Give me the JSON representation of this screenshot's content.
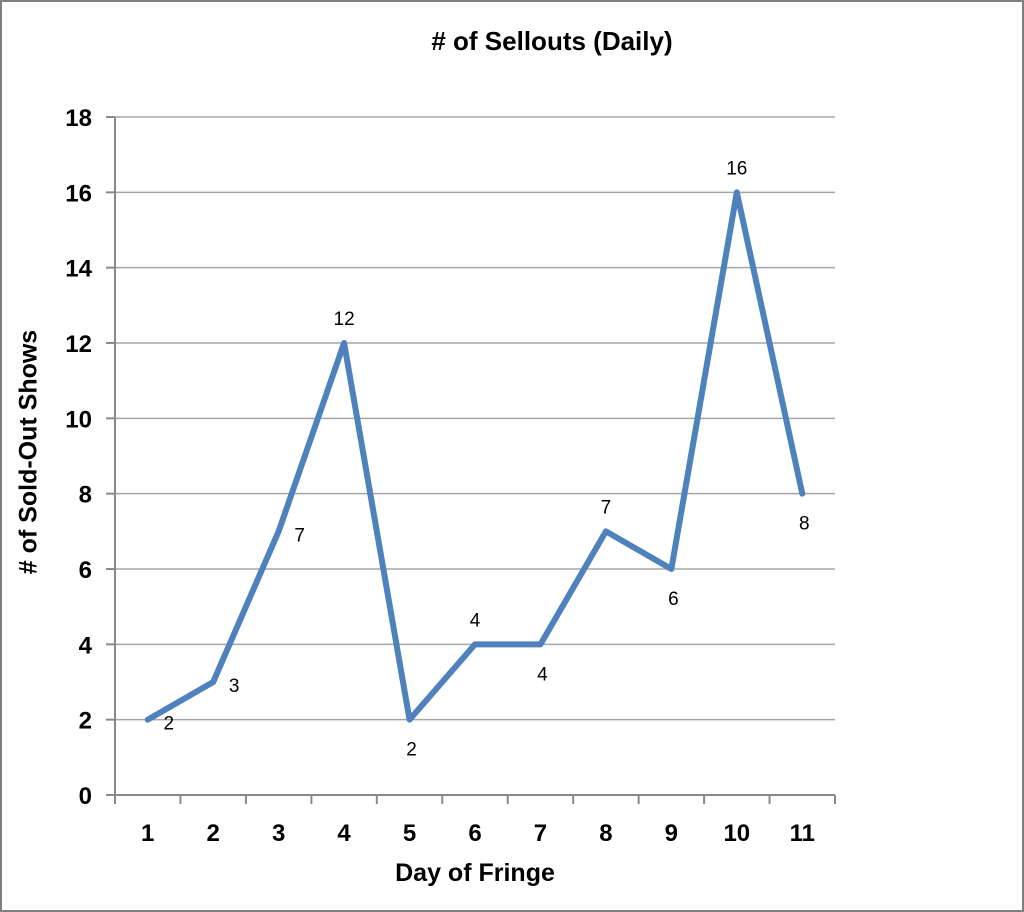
{
  "chart_data": {
    "type": "line",
    "title": "# of Sellouts (Daily)",
    "xlabel": "Day of Fringe",
    "ylabel": "# of Sold-Out Shows",
    "categories": [
      "1",
      "2",
      "3",
      "4",
      "5",
      "6",
      "7",
      "8",
      "9",
      "10",
      "11"
    ],
    "values": [
      2,
      3,
      7,
      12,
      2,
      4,
      4,
      7,
      6,
      16,
      8
    ],
    "data_labels": [
      "2",
      "3",
      "7",
      "12",
      "2",
      "4",
      "4",
      "7",
      "6",
      "16",
      "8"
    ],
    "label_positions": [
      "right",
      "right",
      "right",
      "above",
      "below",
      "above",
      "below",
      "above",
      "below",
      "above",
      "below"
    ],
    "ylim": [
      0,
      18
    ],
    "ytick_step": 2,
    "y_tick_labels": [
      "0",
      "2",
      "4",
      "6",
      "8",
      "10",
      "12",
      "14",
      "16",
      "18"
    ],
    "grid": true,
    "legend": "none",
    "colors": {
      "line": "#4F81BD",
      "gridline": "#A6A6A6",
      "axis": "#898989",
      "text": "#000000",
      "border": "#7F7F7F",
      "background": "#FFFFFF"
    }
  }
}
